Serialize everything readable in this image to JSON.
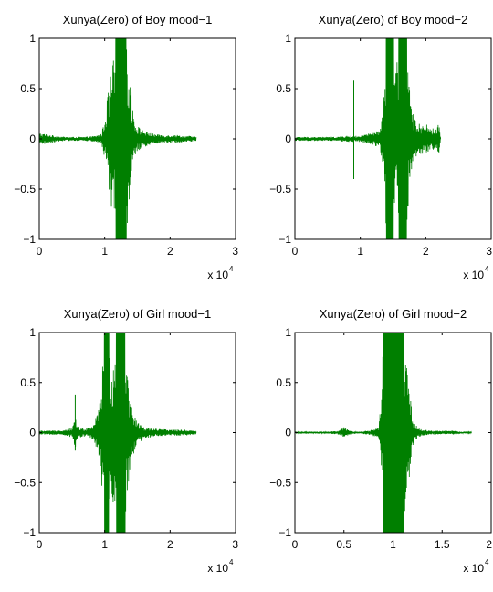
{
  "chart_data": [
    {
      "type": "line",
      "title": "Xunya(Zero) of Boy mood−1",
      "xlim": [
        0,
        30000
      ],
      "ylim": [
        -1,
        1
      ],
      "xticks": [
        0,
        10000,
        20000,
        30000
      ],
      "xtick_labels": [
        "0",
        "1",
        "2",
        "3"
      ],
      "yticks": [
        -1,
        -0.5,
        0,
        0.5,
        1
      ],
      "ytick_labels": [
        "−1",
        "−0.5",
        "0",
        "0.5",
        "1"
      ],
      "x_exponent": "x 10",
      "x_exponent_power": "4",
      "series_color": "#007f00",
      "envelope": {
        "x": [
          0,
          1000,
          2500,
          4000,
          5500,
          7000,
          8500,
          9500,
          10000,
          10500,
          11000,
          11500,
          12000,
          12500,
          13000,
          13500,
          14000,
          14300,
          14800,
          15500,
          16500,
          17500,
          19000,
          20000,
          21000,
          22000,
          23000,
          24000
        ],
        "amp": [
          0.06,
          0.05,
          0.03,
          0.02,
          0.02,
          0.02,
          0.03,
          0.05,
          0.2,
          0.45,
          0.7,
          0.85,
          1.0,
          1.0,
          1.0,
          0.85,
          0.6,
          0.3,
          0.15,
          0.1,
          0.07,
          0.05,
          0.04,
          0.04,
          0.04,
          0.03,
          0.03,
          0.02
        ]
      },
      "spikes": []
    },
    {
      "type": "line",
      "title": "Xunya(Zero) of Boy mood−2",
      "xlim": [
        0,
        30000
      ],
      "ylim": [
        -1,
        1
      ],
      "xticks": [
        0,
        10000,
        20000,
        30000
      ],
      "xtick_labels": [
        "0",
        "1",
        "2",
        "3"
      ],
      "yticks": [
        -1,
        -0.5,
        0,
        0.5,
        1
      ],
      "ytick_labels": [
        "−1",
        "−0.5",
        "0",
        "0.5",
        "1"
      ],
      "x_exponent": "x 10",
      "x_exponent_power": "4",
      "series_color": "#007f00",
      "envelope": {
        "x": [
          0,
          2000,
          4000,
          6000,
          8000,
          9000,
          10000,
          11000,
          12000,
          13000,
          13500,
          14000,
          14500,
          15000,
          15500,
          16000,
          16500,
          17000,
          17500,
          18000,
          19000,
          20000,
          21000,
          22000,
          22300
        ],
        "amp": [
          0.02,
          0.02,
          0.02,
          0.02,
          0.03,
          0.03,
          0.03,
          0.05,
          0.06,
          0.1,
          0.3,
          1.0,
          1.0,
          0.95,
          0.7,
          1.0,
          1.0,
          1.0,
          0.5,
          0.25,
          0.15,
          0.15,
          0.1,
          0.15,
          0.0
        ]
      },
      "spikes": [
        {
          "x": 9000,
          "top": 0.58,
          "bottom": -0.4
        }
      ]
    },
    {
      "type": "line",
      "title": "Xunya(Zero) of Girl mood−1",
      "xlim": [
        0,
        30000
      ],
      "ylim": [
        -1,
        1
      ],
      "xticks": [
        0,
        10000,
        20000,
        30000
      ],
      "xtick_labels": [
        "0",
        "1",
        "2",
        "3"
      ],
      "yticks": [
        -1,
        -0.5,
        0,
        0.5,
        1
      ],
      "ytick_labels": [
        "−1",
        "−0.5",
        "0",
        "0.5",
        "1"
      ],
      "x_exponent": "x 10",
      "x_exponent_power": "4",
      "series_color": "#007f00",
      "envelope": {
        "x": [
          0,
          2000,
          4000,
          5000,
          5500,
          6000,
          7000,
          8000,
          9000,
          9500,
          10000,
          10500,
          11000,
          11500,
          12000,
          12500,
          13000,
          13500,
          14000,
          15000,
          15500,
          16000,
          17000,
          18000,
          20000,
          22000,
          24000
        ],
        "amp": [
          0.02,
          0.02,
          0.03,
          0.05,
          0.15,
          0.05,
          0.04,
          0.06,
          0.2,
          0.5,
          1.0,
          1.0,
          0.7,
          0.8,
          1.0,
          1.0,
          1.0,
          0.6,
          0.3,
          0.1,
          0.1,
          0.05,
          0.05,
          0.04,
          0.03,
          0.03,
          0.02
        ]
      },
      "spikes": [
        {
          "x": 5500,
          "top": 0.38,
          "bottom": -0.18
        }
      ]
    },
    {
      "type": "line",
      "title": "Xunya(Zero) of Girl mood−2",
      "xlim": [
        0,
        20000
      ],
      "ylim": [
        -1,
        1
      ],
      "xticks": [
        0,
        5000,
        10000,
        15000,
        20000
      ],
      "xtick_labels": [
        "0",
        "0.5",
        "1",
        "1.5",
        "2"
      ],
      "yticks": [
        -1,
        -0.5,
        0,
        0.5,
        1
      ],
      "ytick_labels": [
        "−1",
        "−0.5",
        "0",
        "0.5",
        "1"
      ],
      "x_exponent": "x 10",
      "x_exponent_power": "4",
      "series_color": "#007f00",
      "envelope": {
        "x": [
          0,
          2000,
          3500,
          4500,
          5000,
          5500,
          6500,
          7500,
          8500,
          8800,
          9000,
          9500,
          10000,
          10500,
          11000,
          11500,
          12000,
          12500,
          13000,
          14000,
          15000,
          16000,
          17000,
          18000
        ],
        "amp": [
          0.01,
          0.01,
          0.01,
          0.02,
          0.06,
          0.02,
          0.01,
          0.02,
          0.05,
          0.3,
          1.0,
          1.0,
          1.0,
          1.0,
          1.0,
          0.6,
          0.15,
          0.05,
          0.03,
          0.02,
          0.02,
          0.02,
          0.01,
          0.01
        ]
      },
      "spikes": []
    }
  ]
}
